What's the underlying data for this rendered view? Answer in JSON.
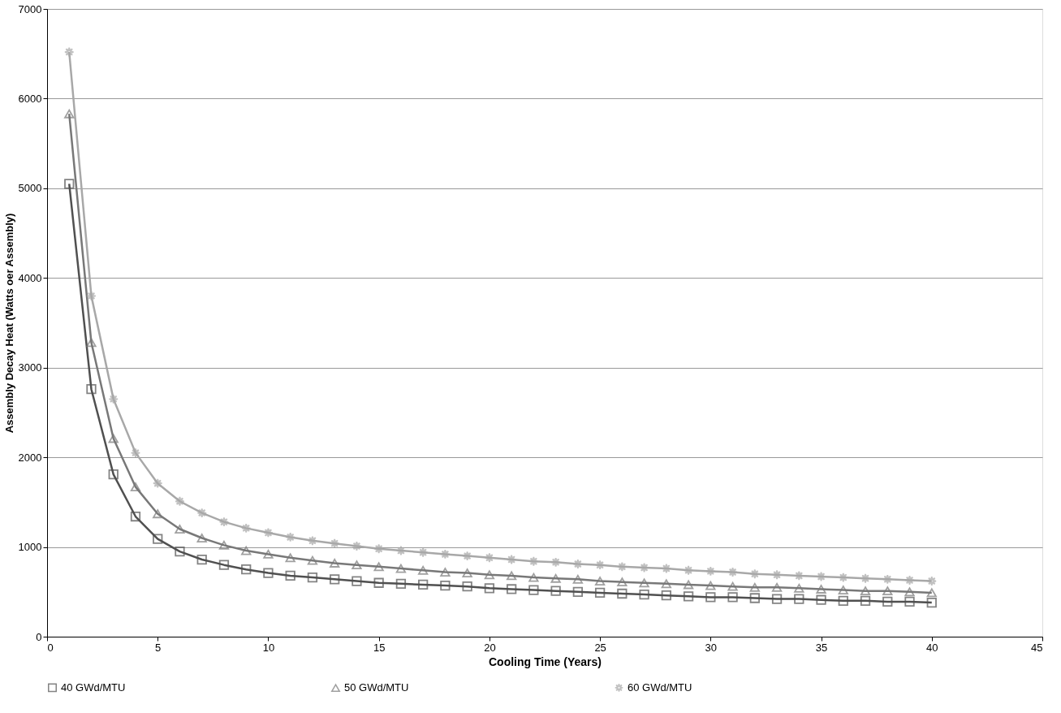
{
  "chart_data": {
    "type": "line",
    "xlabel": "Cooling Time (Years)",
    "ylabel": "Assembly Decay Heat (Watts oer Assembly)",
    "x": [
      1,
      2,
      3,
      4,
      5,
      6,
      7,
      8,
      9,
      10,
      11,
      12,
      13,
      14,
      15,
      16,
      17,
      18,
      19,
      20,
      21,
      22,
      23,
      24,
      25,
      26,
      27,
      28,
      29,
      30,
      31,
      32,
      33,
      34,
      35,
      36,
      37,
      38,
      39,
      40
    ],
    "series": [
      {
        "name": "40 GWd/MTU",
        "color": "#505050",
        "marker": "square",
        "values": [
          5050,
          2760,
          1810,
          1340,
          1090,
          950,
          860,
          800,
          750,
          710,
          680,
          660,
          640,
          620,
          600,
          590,
          580,
          570,
          560,
          540,
          530,
          520,
          510,
          500,
          490,
          480,
          470,
          460,
          450,
          440,
          440,
          430,
          420,
          420,
          410,
          400,
          400,
          390,
          390,
          380
        ]
      },
      {
        "name": "50 GWd/MTU",
        "color": "#787878",
        "marker": "triangle",
        "values": [
          5830,
          3280,
          2210,
          1670,
          1370,
          1200,
          1100,
          1020,
          960,
          920,
          880,
          850,
          820,
          800,
          780,
          760,
          740,
          720,
          710,
          690,
          680,
          660,
          650,
          640,
          620,
          610,
          600,
          590,
          580,
          570,
          560,
          550,
          550,
          540,
          530,
          520,
          510,
          510,
          500,
          490
        ]
      },
      {
        "name": "60 GWd/MTU",
        "color": "#a8a8a8",
        "marker": "star",
        "values": [
          6520,
          3800,
          2650,
          2050,
          1710,
          1510,
          1380,
          1280,
          1210,
          1160,
          1110,
          1070,
          1040,
          1010,
          980,
          960,
          940,
          920,
          900,
          880,
          860,
          840,
          830,
          810,
          800,
          780,
          770,
          760,
          740,
          730,
          720,
          700,
          690,
          680,
          670,
          660,
          650,
          640,
          630,
          620
        ]
      }
    ],
    "xlim": [
      0,
      45
    ],
    "xticks": [
      0,
      5,
      10,
      15,
      20,
      25,
      30,
      35,
      40,
      45
    ],
    "ylim": [
      0,
      7000
    ],
    "yticks": [
      0,
      1000,
      2000,
      3000,
      4000,
      5000,
      6000,
      7000
    ],
    "grid": "y",
    "legend": "bottom",
    "line_style": "solid"
  }
}
